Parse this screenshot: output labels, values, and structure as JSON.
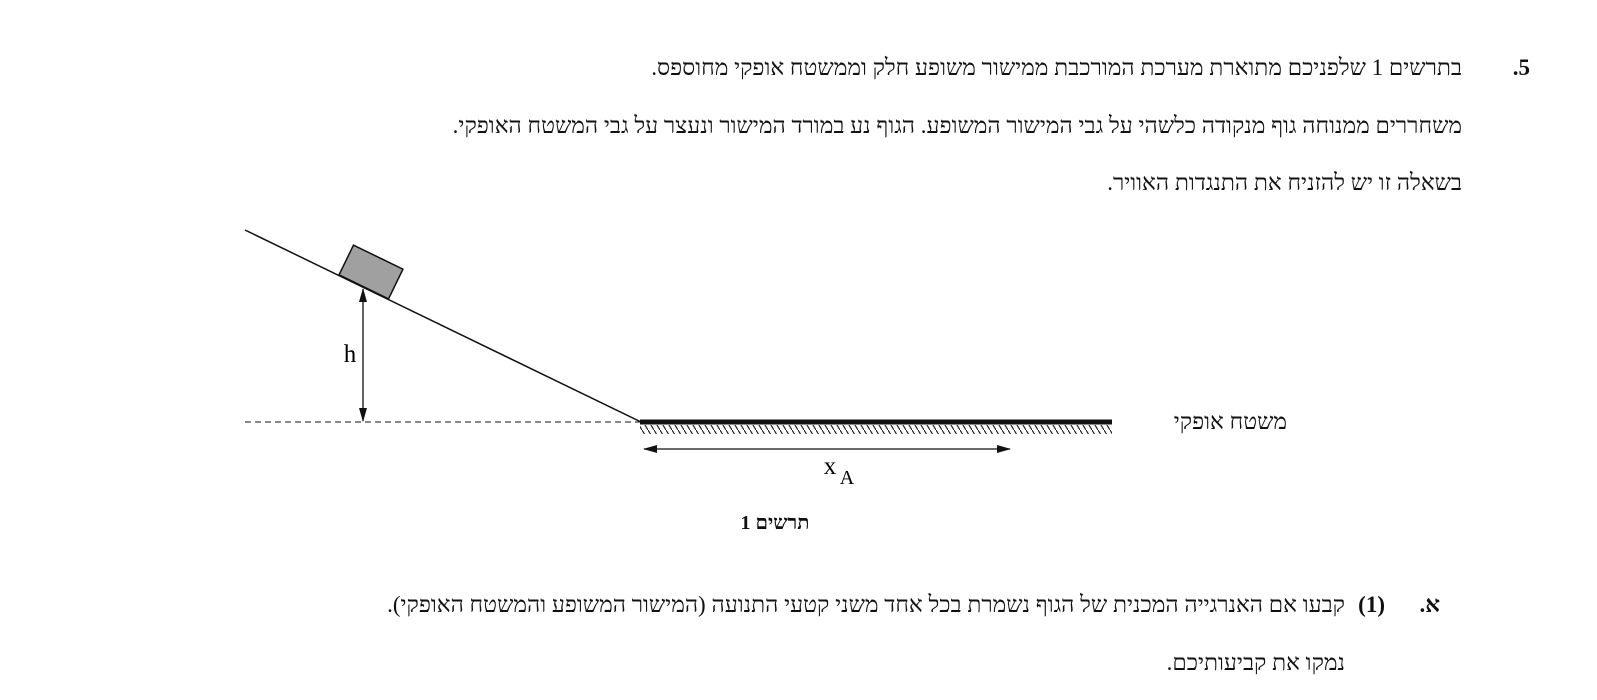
{
  "question": {
    "number": "5.",
    "lines": [
      "בתרשים 1 שלפניכם מתוארת מערכת המורכבת ממישור משופע חלק וממשטח אופקי מחוספס.",
      "משחררים ממנוחה גוף מנקודה כלשהי על גבי המישור המשופע. הגוף נע במורד המישור ונעצר על גבי המשטח האופקי.",
      "בשאלה זו יש להזניח את התנגדות האוויר."
    ]
  },
  "diagram": {
    "height_label": "h",
    "distance_label": "x",
    "distance_subscript": "A",
    "surface_label": "משטח אופקי",
    "caption": "תרשים 1"
  },
  "part": {
    "letter": "א.",
    "number": "(1)",
    "lines": [
      "קבעו אם האנרגייה המכנית של הגוף נשמרת בכל אחד משני קטעי התנועה (המישור המשופע והמשטח האופקי).",
      "נמקו את קביעותיכם."
    ]
  }
}
